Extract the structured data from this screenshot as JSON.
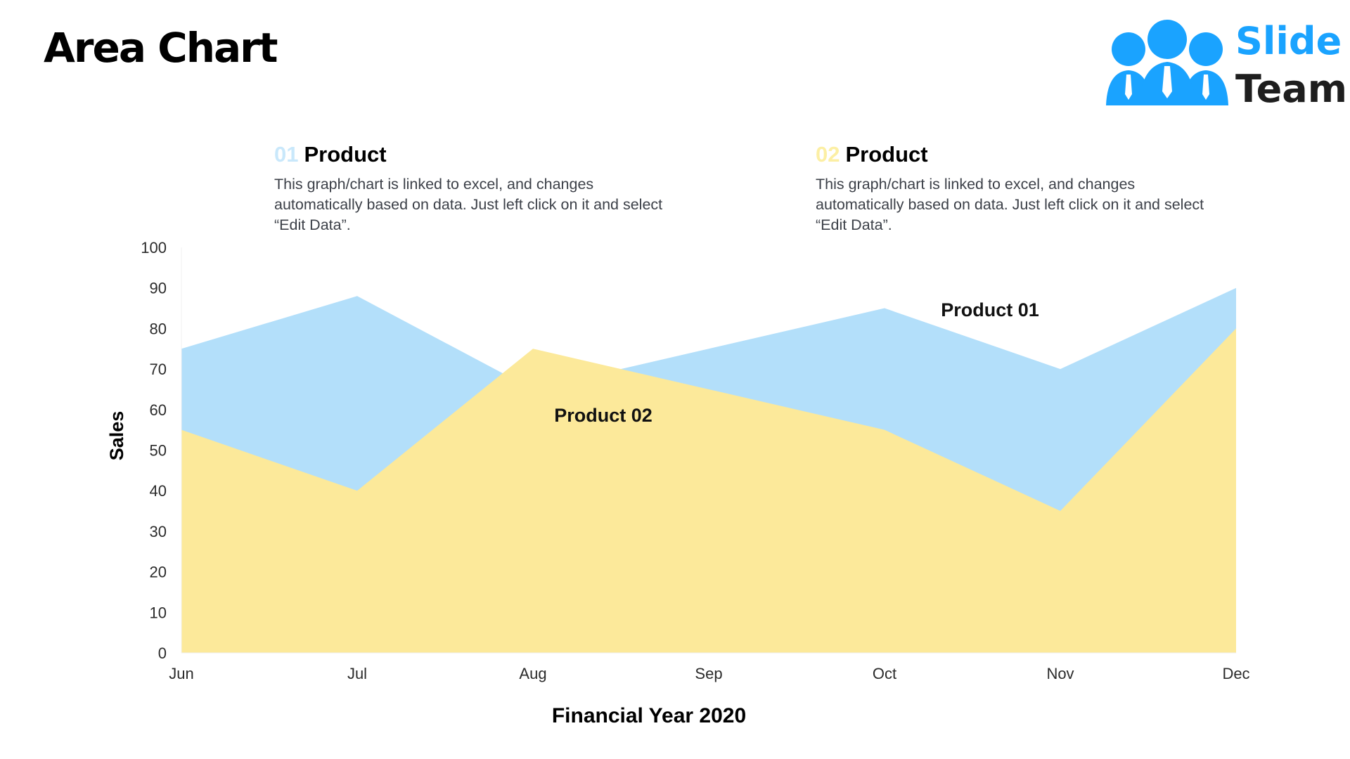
{
  "page": {
    "title": "Area Chart"
  },
  "logo": {
    "line1": "Slide",
    "line2": "Team",
    "icon": "people-group-icon",
    "colors": {
      "primary": "#1aa3ff",
      "text": "#1e1e1e"
    }
  },
  "legend_blocks": [
    {
      "number": "01",
      "heading": "Product",
      "text": "This graph/chart is linked to excel, and changes automatically based on data. Just left click on it and select “Edit Data”.",
      "number_color": "#c9e8fb"
    },
    {
      "number": "02",
      "heading": "Product",
      "text": "This graph/chart is linked to excel, and changes automatically based on data. Just left click on it and select “Edit Data”.",
      "number_color": "#fcefa4"
    }
  ],
  "chart_data": {
    "type": "area",
    "categories": [
      "Jun",
      "Jul",
      "Aug",
      "Sep",
      "Oct",
      "Nov",
      "Dec"
    ],
    "series": [
      {
        "name": "Product 01",
        "values": [
          75,
          88,
          65,
          75,
          85,
          70,
          90
        ],
        "color": "#b3dffa"
      },
      {
        "name": "Product 02",
        "values": [
          55,
          40,
          75,
          65,
          55,
          35,
          80
        ],
        "color": "#fce99a"
      }
    ],
    "xlabel": "Financial Year 2020",
    "ylabel": "Sales",
    "ylim": [
      0,
      100
    ],
    "yticks": [
      0,
      10,
      20,
      30,
      40,
      50,
      60,
      70,
      80,
      90,
      100
    ],
    "grid": false,
    "legend": "inline-labels"
  }
}
